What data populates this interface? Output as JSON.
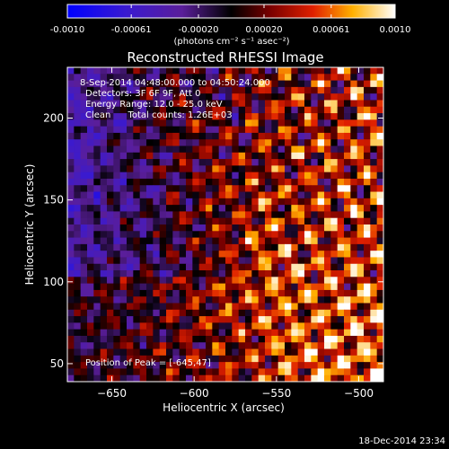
{
  "chart_data": {
    "type": "heatmap",
    "title": "Reconstructed RHESSI Image",
    "xlabel": "Heliocentric X (arcsec)",
    "ylabel": "Heliocentric Y (arcsec)",
    "xlim": [
      -677,
      -485
    ],
    "ylim": [
      39,
      231
    ],
    "xticks": [
      -650,
      -600,
      -550,
      -500
    ],
    "yticks": [
      50,
      100,
      150,
      200
    ],
    "grid": false,
    "colorbar": {
      "ticks": [
        -0.001,
        -0.00061,
        -0.0002,
        0.0002,
        0.00061,
        0.001
      ],
      "tick_labels": [
        "-0.0010",
        "-0.00061",
        "-0.00020",
        "0.00020",
        "0.00061",
        "0.0010"
      ],
      "range": [
        -0.001,
        0.001
      ],
      "label": "(photons cm⁻² s⁻¹ asec⁻²)"
    },
    "annotations": [
      "8-Sep-2014 04:48:00.000 to 04:50:24.000",
      "Detectors: 3F 6F 9F, Att 0",
      "Energy Range: 12.0 - 25.0 keV",
      "Clean      Total counts: 1.26E+03"
    ],
    "peak_label": "Position of Peak = [-645,47]",
    "peak": [
      -645,
      47
    ]
  },
  "footer": {
    "timestamp": "18-Dec-2014 23:34"
  }
}
